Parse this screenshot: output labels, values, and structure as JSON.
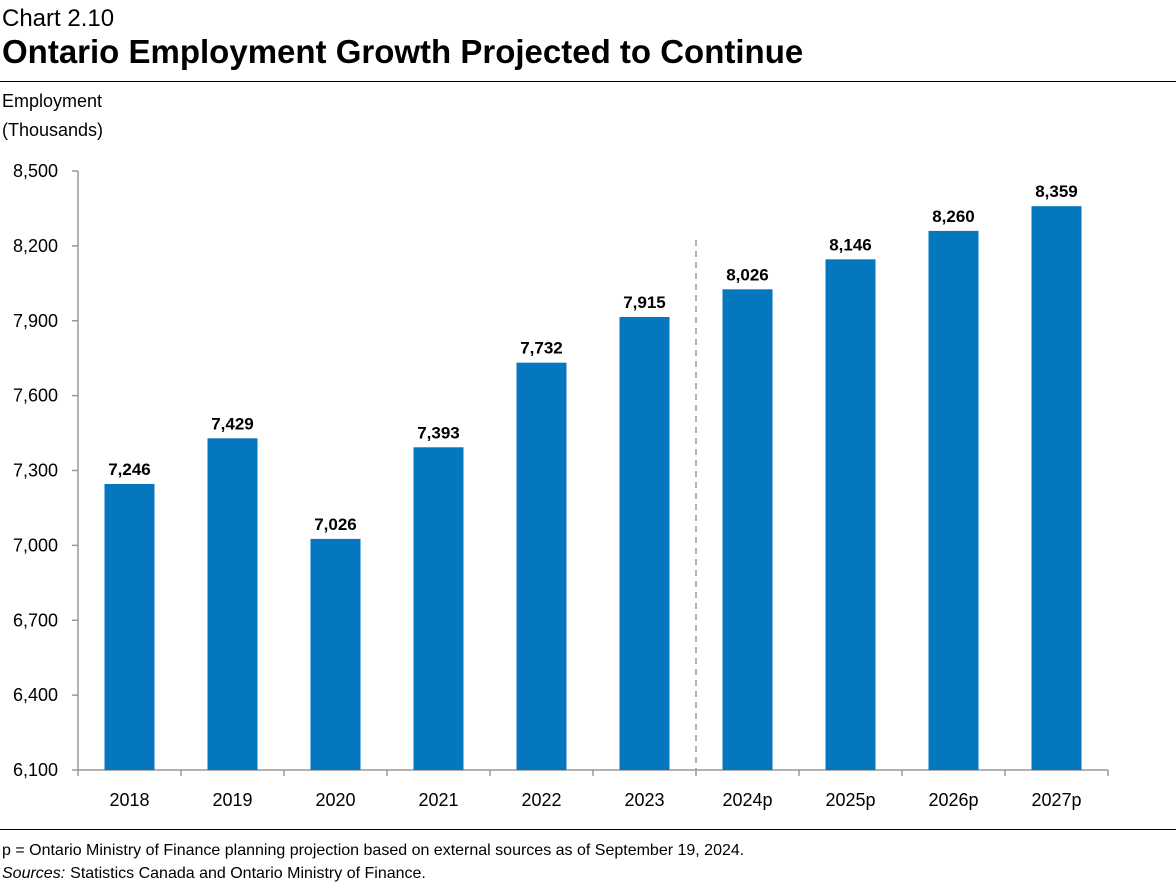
{
  "chart_data": {
    "type": "bar",
    "chart_number": "Chart 2.10",
    "title": "Ontario Employment Growth Projected to Continue",
    "y_label": [
      "Employment",
      "(Thousands)"
    ],
    "categories": [
      "2018",
      "2019",
      "2020",
      "2021",
      "2022",
      "2023",
      "2024p",
      "2025p",
      "2026p",
      "2027p"
    ],
    "values": [
      7246,
      7429,
      7026,
      7393,
      7732,
      7915,
      8026,
      8146,
      8260,
      8359
    ],
    "value_labels": [
      "7,246",
      "7,429",
      "7,026",
      "7,393",
      "7,732",
      "7,915",
      "8,026",
      "8,146",
      "8,260",
      "8,359"
    ],
    "color": "#0477bf",
    "ylim": [
      6100,
      8500
    ],
    "yticks": [
      {
        "value": 6100,
        "label": "6,100"
      },
      {
        "value": 6400,
        "label": "6,400"
      },
      {
        "value": 6700,
        "label": "6,700"
      },
      {
        "value": 7000,
        "label": "7,000"
      },
      {
        "value": 7300,
        "label": "7,300"
      },
      {
        "value": 7600,
        "label": "7,600"
      },
      {
        "value": 7900,
        "label": "7,900"
      },
      {
        "value": 8200,
        "label": "8,200"
      },
      {
        "value": 8500,
        "label": "8,500"
      }
    ],
    "grid": false,
    "footnote": "p = Ontario Ministry of Finance planning projection based on external sources as of September 19, 2024.",
    "sources": {
      "label": "Sources:",
      "text": "Statistics Canada and Ontario Ministry of Finance."
    }
  }
}
